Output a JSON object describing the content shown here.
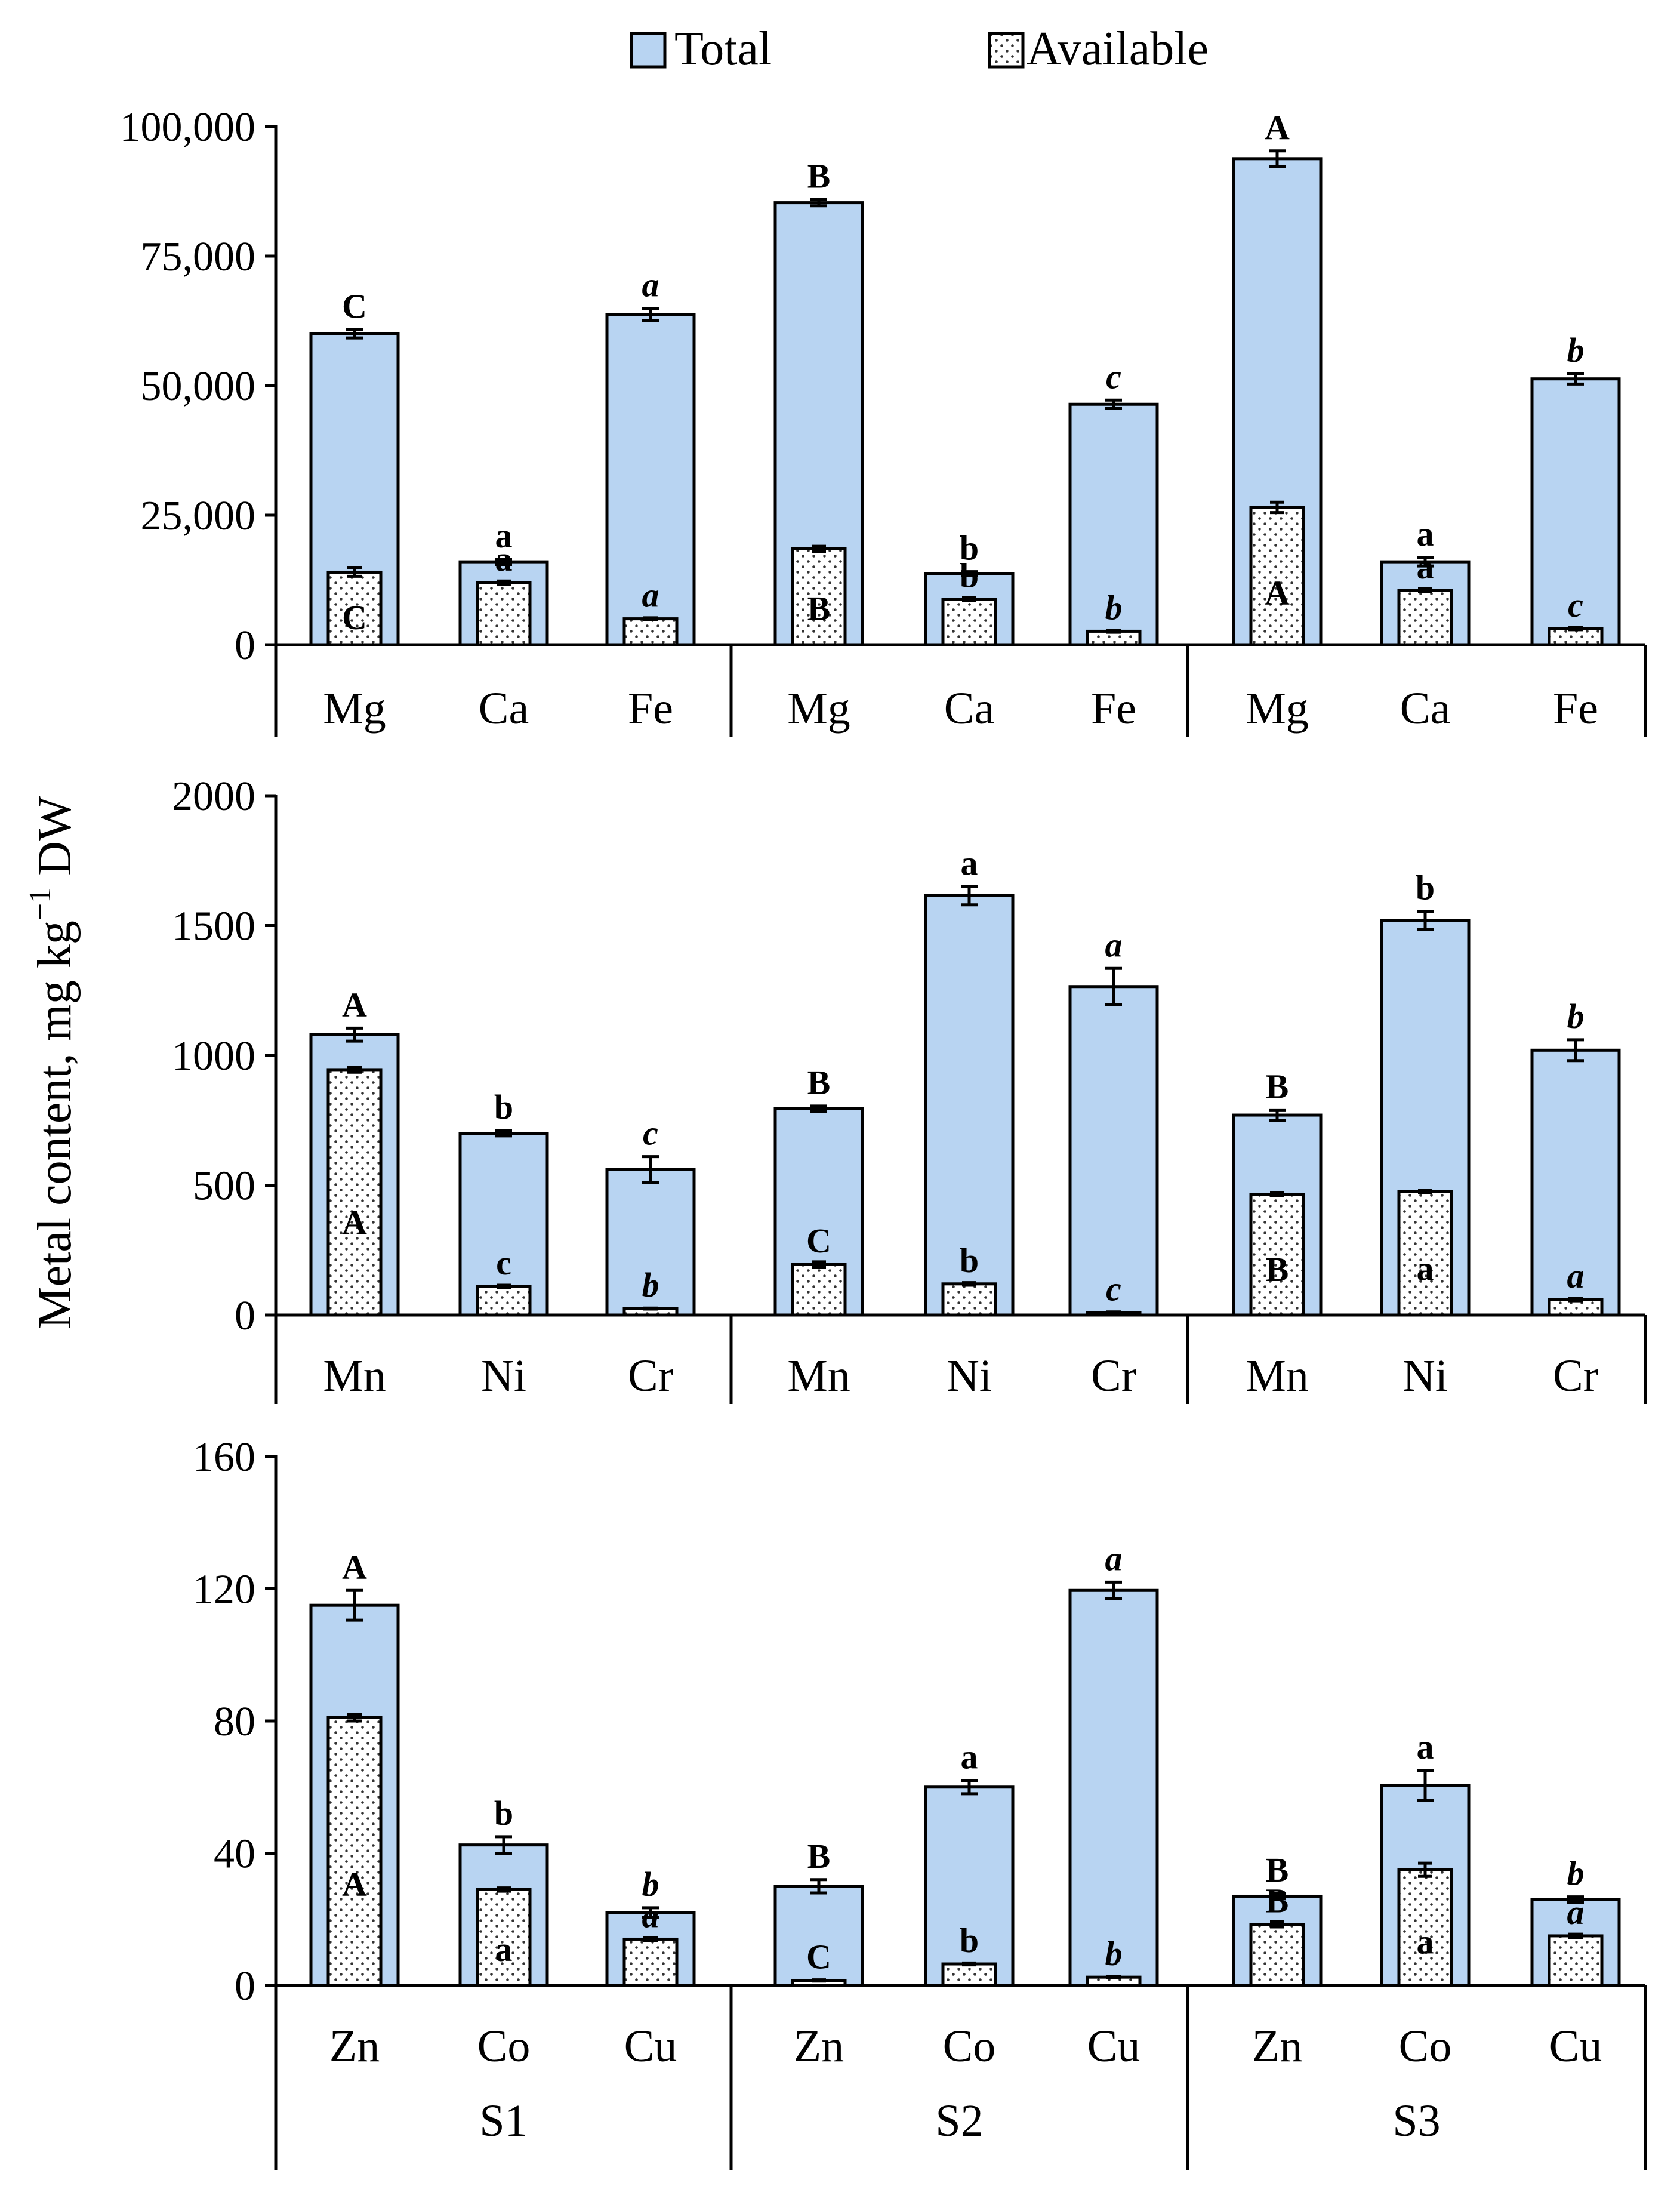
{
  "chart_data": {
    "type": "bar",
    "ylabel": "Metal content, mg kg",
    "ylabel_sup": "−1",
    "ylabel_suffix": " DW",
    "legend": [
      {
        "name": "Total",
        "fill": "#b8d4f2"
      },
      {
        "name": "Available",
        "fill": "dotted"
      }
    ],
    "colors": {
      "total": "#b8d4f2",
      "edge": "#000000"
    },
    "groups": [
      "S1",
      "S2",
      "S3"
    ],
    "panels": [
      {
        "id": "macro",
        "ylim": [
          0,
          100000
        ],
        "yticks": [
          0,
          25000,
          50000,
          75000,
          100000
        ],
        "ytick_labels": [
          "0",
          "25,000",
          "50,000",
          "75,000",
          "100,000"
        ],
        "metals": [
          "Mg",
          "Ca",
          "Fe"
        ],
        "bars": [
          {
            "group": "S1",
            "metal": "Mg",
            "total": 60000,
            "total_err": 800,
            "available": 14000,
            "avail_err": 800,
            "total_sig": "C",
            "avail_sig": "C",
            "sig_italic": false
          },
          {
            "group": "S1",
            "metal": "Ca",
            "total": 16000,
            "total_err": 500,
            "available": 12000,
            "avail_err": 300,
            "total_sig": "a",
            "avail_sig": "a",
            "sig_italic": false
          },
          {
            "group": "S1",
            "metal": "Fe",
            "total": 63700,
            "total_err": 1200,
            "available": 5000,
            "avail_err": 200,
            "total_sig": "a",
            "avail_sig": "a",
            "sig_italic": true
          },
          {
            "group": "S2",
            "metal": "Mg",
            "total": 85300,
            "total_err": 600,
            "available": 18500,
            "avail_err": 500,
            "total_sig": "B",
            "avail_sig": "B",
            "sig_italic": false
          },
          {
            "group": "S2",
            "metal": "Ca",
            "total": 13700,
            "total_err": 400,
            "available": 8800,
            "avail_err": 300,
            "total_sig": "b",
            "avail_sig": "b",
            "sig_italic": false
          },
          {
            "group": "S2",
            "metal": "Fe",
            "total": 46400,
            "total_err": 800,
            "available": 2600,
            "avail_err": 200,
            "total_sig": "c",
            "avail_sig": "b",
            "sig_italic": true
          },
          {
            "group": "S3",
            "metal": "Mg",
            "total": 93800,
            "total_err": 1500,
            "available": 26500,
            "avail_err": 1000,
            "total_sig": "A",
            "avail_sig": "A",
            "sig_italic": false
          },
          {
            "group": "S3",
            "metal": "Ca",
            "total": 16000,
            "total_err": 800,
            "available": 10500,
            "avail_err": 300,
            "total_sig": "a",
            "avail_sig": "a",
            "sig_italic": false
          },
          {
            "group": "S3",
            "metal": "Fe",
            "total": 51300,
            "total_err": 1000,
            "available": 3100,
            "avail_err": 200,
            "total_sig": "b",
            "avail_sig": "c",
            "sig_italic": true
          }
        ]
      },
      {
        "id": "trace1",
        "ylim": [
          0,
          2000
        ],
        "yticks": [
          0,
          500,
          1000,
          1500,
          2000
        ],
        "ytick_labels": [
          "0",
          "500",
          "1000",
          "1500",
          "2000"
        ],
        "metals": [
          "Mn",
          "Ni",
          "Cr"
        ],
        "bars": [
          {
            "group": "S1",
            "metal": "Mn",
            "total": 1080,
            "total_err": 25,
            "available": 945,
            "avail_err": 10,
            "total_sig": "A",
            "avail_sig": "A",
            "sig_italic": false
          },
          {
            "group": "S1",
            "metal": "Ni",
            "total": 700,
            "total_err": 10,
            "available": 110,
            "avail_err": 5,
            "total_sig": "b",
            "avail_sig": "c",
            "sig_italic": false
          },
          {
            "group": "S1",
            "metal": "Cr",
            "total": 560,
            "total_err": 50,
            "available": 25,
            "avail_err": 2,
            "total_sig": "c",
            "avail_sig": "b",
            "sig_italic": true
          },
          {
            "group": "S2",
            "metal": "Mn",
            "total": 795,
            "total_err": 10,
            "available": 195,
            "avail_err": 10,
            "total_sig": "B",
            "avail_sig": "C",
            "sig_italic": false
          },
          {
            "group": "S2",
            "metal": "Ni",
            "total": 1615,
            "total_err": 35,
            "available": 120,
            "avail_err": 5,
            "total_sig": "a",
            "avail_sig": "b",
            "sig_italic": false
          },
          {
            "group": "S2",
            "metal": "Cr",
            "total": 1265,
            "total_err": 70,
            "available": 10,
            "avail_err": 2,
            "total_sig": "a",
            "avail_sig": "c",
            "sig_italic": true
          },
          {
            "group": "S3",
            "metal": "Mn",
            "total": 770,
            "total_err": 20,
            "available": 465,
            "avail_err": 5,
            "total_sig": "B",
            "avail_sig": "B",
            "sig_italic": false
          },
          {
            "group": "S3",
            "metal": "Ni",
            "total": 1520,
            "total_err": 35,
            "available": 475,
            "avail_err": 5,
            "total_sig": "b",
            "avail_sig": "a",
            "sig_italic": false
          },
          {
            "group": "S3",
            "metal": "Cr",
            "total": 1020,
            "total_err": 40,
            "available": 60,
            "avail_err": 5,
            "total_sig": "b",
            "avail_sig": "a",
            "sig_italic": true
          }
        ]
      },
      {
        "id": "trace2",
        "ylim": [
          0,
          160
        ],
        "yticks": [
          0,
          40,
          80,
          120,
          160
        ],
        "ytick_labels": [
          "0",
          "40",
          "80",
          "120",
          "160"
        ],
        "metals": [
          "Zn",
          "Co",
          "Cu"
        ],
        "bars": [
          {
            "group": "S1",
            "metal": "Zn",
            "total": 115,
            "total_err": 4.5,
            "available": 81,
            "avail_err": 1,
            "total_sig": "A",
            "avail_sig": "A",
            "sig_italic": false
          },
          {
            "group": "S1",
            "metal": "Co",
            "total": 42.5,
            "total_err": 2.5,
            "available": 29,
            "avail_err": 0.5,
            "total_sig": "b",
            "avail_sig": "a",
            "sig_italic": false
          },
          {
            "group": "S1",
            "metal": "Cu",
            "total": 22,
            "total_err": 1.5,
            "available": 14,
            "avail_err": 0.5,
            "total_sig": "b",
            "avail_sig": "a",
            "sig_italic": true
          },
          {
            "group": "S2",
            "metal": "Zn",
            "total": 30,
            "total_err": 2,
            "available": 1.5,
            "avail_err": 0.2,
            "total_sig": "B",
            "avail_sig": "C",
            "sig_italic": false
          },
          {
            "group": "S2",
            "metal": "Co",
            "total": 60,
            "total_err": 2,
            "available": 6.5,
            "avail_err": 0.3,
            "total_sig": "a",
            "avail_sig": "b",
            "sig_italic": false
          },
          {
            "group": "S2",
            "metal": "Cu",
            "total": 119.5,
            "total_err": 2.5,
            "available": 2.5,
            "avail_err": 0.2,
            "total_sig": "a",
            "avail_sig": "b",
            "sig_italic": true
          },
          {
            "group": "S3",
            "metal": "Zn",
            "total": 27,
            "total_err": 0.8,
            "available": 18.5,
            "avail_err": 0.8,
            "total_sig": "B",
            "avail_sig": "B",
            "sig_italic": false
          },
          {
            "group": "S3",
            "metal": "Co",
            "total": 60.5,
            "total_err": 4.5,
            "available": 35,
            "avail_err": 2,
            "total_sig": "a",
            "avail_sig": "a",
            "sig_italic": false
          },
          {
            "group": "S3",
            "metal": "Cu",
            "total": 26,
            "total_err": 0.8,
            "available": 15,
            "avail_err": 0.5,
            "total_sig": "b",
            "avail_sig": "a",
            "sig_italic": true
          }
        ]
      }
    ]
  }
}
